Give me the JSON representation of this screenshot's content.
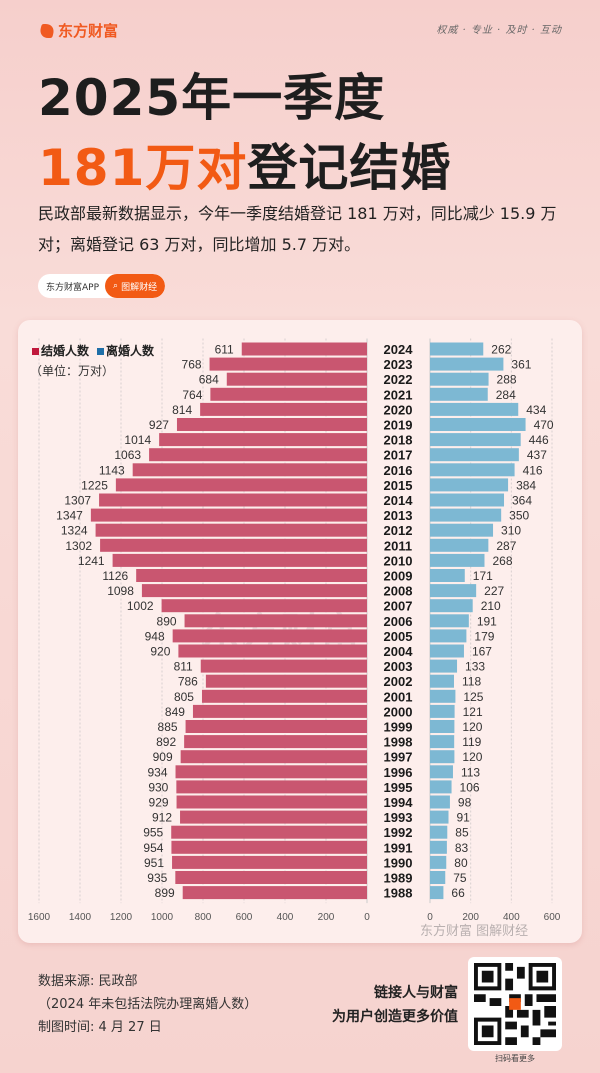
{
  "header": {
    "brand": "东方财富",
    "slogan": "权威 · 专业 · 及时 · 互动"
  },
  "title": {
    "line1": "2025年一季度",
    "line2_highlight": "181万对",
    "line2_rest": "登记结婚"
  },
  "description": "民政部最新数据显示，今年一季度结婚登记 181 万对，同比减少 15.9 万对；离婚登记 63 万对，同比增加 5.7 万对。",
  "pill": {
    "app": "东方财富APP",
    "tag": "图解财经"
  },
  "watermark": "东方财富",
  "chart_data": {
    "type": "bar",
    "orientation": "horizontal-butterfly",
    "unit": "（单位：万对）",
    "categories": [
      "2024",
      "2023",
      "2022",
      "2021",
      "2020",
      "2019",
      "2018",
      "2017",
      "2016",
      "2015",
      "2014",
      "2013",
      "2012",
      "2011",
      "2010",
      "2009",
      "2008",
      "2007",
      "2006",
      "2005",
      "2004",
      "2003",
      "2002",
      "2001",
      "2000",
      "1999",
      "1998",
      "1997",
      "1996",
      "1995",
      "1994",
      "1993",
      "1992",
      "1991",
      "1990",
      "1989",
      "1988"
    ],
    "series": [
      {
        "name": "结婚人数",
        "color": "#c95670",
        "legend_color": "#c0183c",
        "xlim": [
          0,
          1600
        ],
        "ticks": [
          "1600",
          "1400",
          "1200",
          "1000",
          "800",
          "600",
          "400",
          "200",
          "0"
        ],
        "values": [
          611,
          768,
          684,
          764,
          814,
          927,
          1014,
          1063,
          1143,
          1225,
          1307,
          1347,
          1324,
          1302,
          1241,
          1126,
          1098,
          1002,
          890,
          948,
          920,
          811,
          786,
          805,
          849,
          885,
          892,
          909,
          934,
          930,
          929,
          912,
          955,
          954,
          951,
          935,
          899
        ]
      },
      {
        "name": "离婚人数",
        "color": "#7db8d3",
        "legend_color": "#1f6fa8",
        "xlim": [
          0,
          600
        ],
        "ticks": [
          "0",
          "200",
          "400",
          "600"
        ],
        "values": [
          262,
          361,
          288,
          284,
          434,
          470,
          446,
          437,
          416,
          384,
          364,
          350,
          310,
          287,
          268,
          171,
          227,
          210,
          191,
          179,
          167,
          133,
          118,
          125,
          121,
          120,
          119,
          120,
          113,
          106,
          98,
          91,
          85,
          83,
          80,
          75,
          66
        ]
      }
    ],
    "grid": true,
    "legend_position": "top-left"
  },
  "chart_credit": "东方财富 图解财经",
  "footer": {
    "source": "数据来源: 民政部",
    "note": "（2024 年未包括法院办理离婚人数）",
    "date": "制图时间: 4 月 27 日",
    "tagline1": "链接人与财富",
    "tagline2": "为用户创造更多价值",
    "qr_label": "扫码看更多"
  }
}
